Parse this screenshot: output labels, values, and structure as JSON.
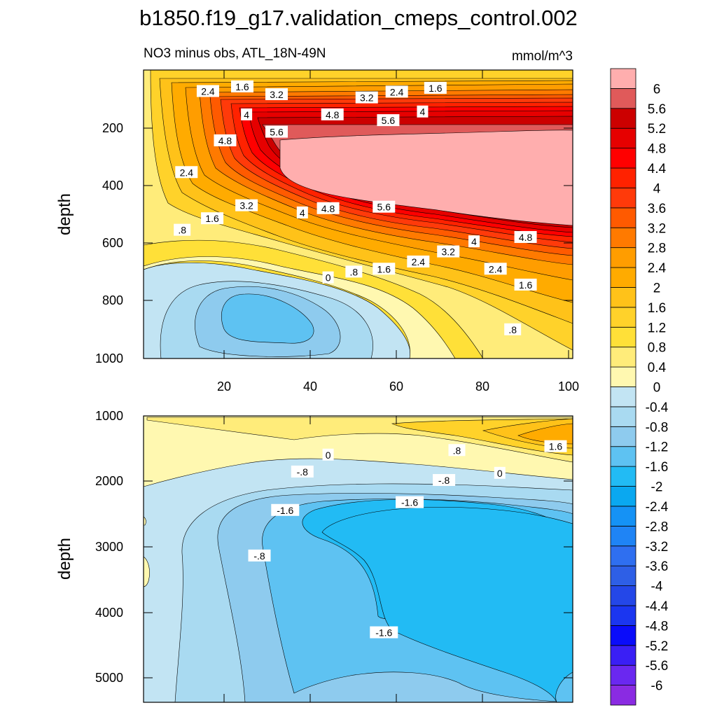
{
  "chart_data": {
    "title": "b1850.f19_g17.validation_cmeps_control.002",
    "colorbar": {
      "levels": [
        "-6",
        "-5.6",
        "-5.2",
        "-4.8",
        "-4.4",
        "-4",
        "-3.6",
        "-3.2",
        "-2.8",
        "-2.4",
        "-2",
        "-1.6",
        "-1.2",
        "-0.8",
        "-0.4",
        "0",
        "0.4",
        "0.8",
        "1.2",
        "1.6",
        "2",
        "2.4",
        "2.8",
        "3.2",
        "3.6",
        "4",
        "4.4",
        "4.8",
        "5.2",
        "5.6",
        "6"
      ],
      "colors": [
        "#8a2be2",
        "#6a28f0",
        "#3a1ff5",
        "#0a0cfa",
        "#1b36f0",
        "#2447e8",
        "#2e5fe6",
        "#2f6ff0",
        "#1f84f5",
        "#1592f5",
        "#0aa8f0",
        "#22bbf4",
        "#5ec2f2",
        "#8ecbee",
        "#a9daf1",
        "#c2e4f3",
        "#fff8b0",
        "#ffec7a",
        "#ffe038",
        "#ffd22a",
        "#ffc219",
        "#ffab00",
        "#ff9d00",
        "#ff7a00",
        "#ff5a00",
        "#ff3a0a",
        "#ff2200",
        "#ff0000",
        "#e60000",
        "#cc0000",
        "#e05a5a",
        "#ffaeae"
      ]
    },
    "panels": [
      {
        "type": "contour",
        "left_title": "NO3 minus obs, ATL_18N-49N",
        "right_title": "mmol/m^3",
        "ylabel": "depth",
        "xlim": [
          0,
          100
        ],
        "ylim": [
          1000,
          0
        ],
        "xticks": [
          "20",
          "40",
          "60",
          "80",
          "100"
        ],
        "yticks": [
          "200",
          "400",
          "600",
          "800",
          "1000"
        ],
        "contour_labels": [
          {
            "text": "1.6",
            "x": 23,
            "y": 58
          },
          {
            "text": "2.4",
            "x": 15,
            "y": 74
          },
          {
            "text": "3.2",
            "x": 31,
            "y": 85
          },
          {
            "text": "3.2",
            "x": 52,
            "y": 96
          },
          {
            "text": "2.4",
            "x": 59,
            "y": 76
          },
          {
            "text": "1.6",
            "x": 68,
            "y": 63
          },
          {
            "text": "4",
            "x": 24,
            "y": 155
          },
          {
            "text": "4.8",
            "x": 44,
            "y": 155
          },
          {
            "text": "4",
            "x": 65,
            "y": 145
          },
          {
            "text": "5.6",
            "x": 57,
            "y": 175
          },
          {
            "text": "5.6",
            "x": 31,
            "y": 215
          },
          {
            "text": "4.8",
            "x": 19,
            "y": 245
          },
          {
            "text": "2.4",
            "x": 10,
            "y": 355
          },
          {
            "text": "3.2",
            "x": 24,
            "y": 470
          },
          {
            "text": "1.6",
            "x": 16,
            "y": 515
          },
          {
            "text": "4",
            "x": 37,
            "y": 495
          },
          {
            "text": "4.8",
            "x": 43,
            "y": 480
          },
          {
            "text": "5.6",
            "x": 56,
            "y": 475
          },
          {
            "text": ".8",
            "x": 9,
            "y": 555
          },
          {
            "text": "4",
            "x": 77,
            "y": 595
          },
          {
            "text": "4.8",
            "x": 89,
            "y": 580
          },
          {
            "text": "3.2",
            "x": 71,
            "y": 630
          },
          {
            "text": "2.4",
            "x": 64,
            "y": 665
          },
          {
            "text": "1.6",
            "x": 56,
            "y": 690
          },
          {
            "text": "2.4",
            "x": 82,
            "y": 690
          },
          {
            "text": ".8",
            "x": 49,
            "y": 700
          },
          {
            "text": "0",
            "x": 43,
            "y": 720
          },
          {
            "text": "1.6",
            "x": 89,
            "y": 745
          },
          {
            "text": ".8",
            "x": 86,
            "y": 900
          }
        ]
      },
      {
        "type": "contour",
        "ylabel": "depth",
        "xlim": [
          0,
          100
        ],
        "ylim": [
          5400,
          1000
        ],
        "yticks": [
          "1000",
          "2000",
          "3000",
          "4000",
          "5000"
        ],
        "contour_labels": [
          {
            "text": "0",
            "x": 43,
            "y": 1600
          },
          {
            "text": ".8",
            "x": 73,
            "y": 1530
          },
          {
            "text": "1.6",
            "x": 96,
            "y": 1470
          },
          {
            "text": "-.8",
            "x": 37,
            "y": 1860
          },
          {
            "text": "0",
            "x": 83,
            "y": 1880
          },
          {
            "text": "-.8",
            "x": 70,
            "y": 1990
          },
          {
            "text": "-1.6",
            "x": 33,
            "y": 2450
          },
          {
            "text": "-1.6",
            "x": 62,
            "y": 2330
          },
          {
            "text": "-.8",
            "x": 27,
            "y": 3150
          },
          {
            "text": "-1.6",
            "x": 56,
            "y": 4330
          }
        ]
      }
    ]
  }
}
